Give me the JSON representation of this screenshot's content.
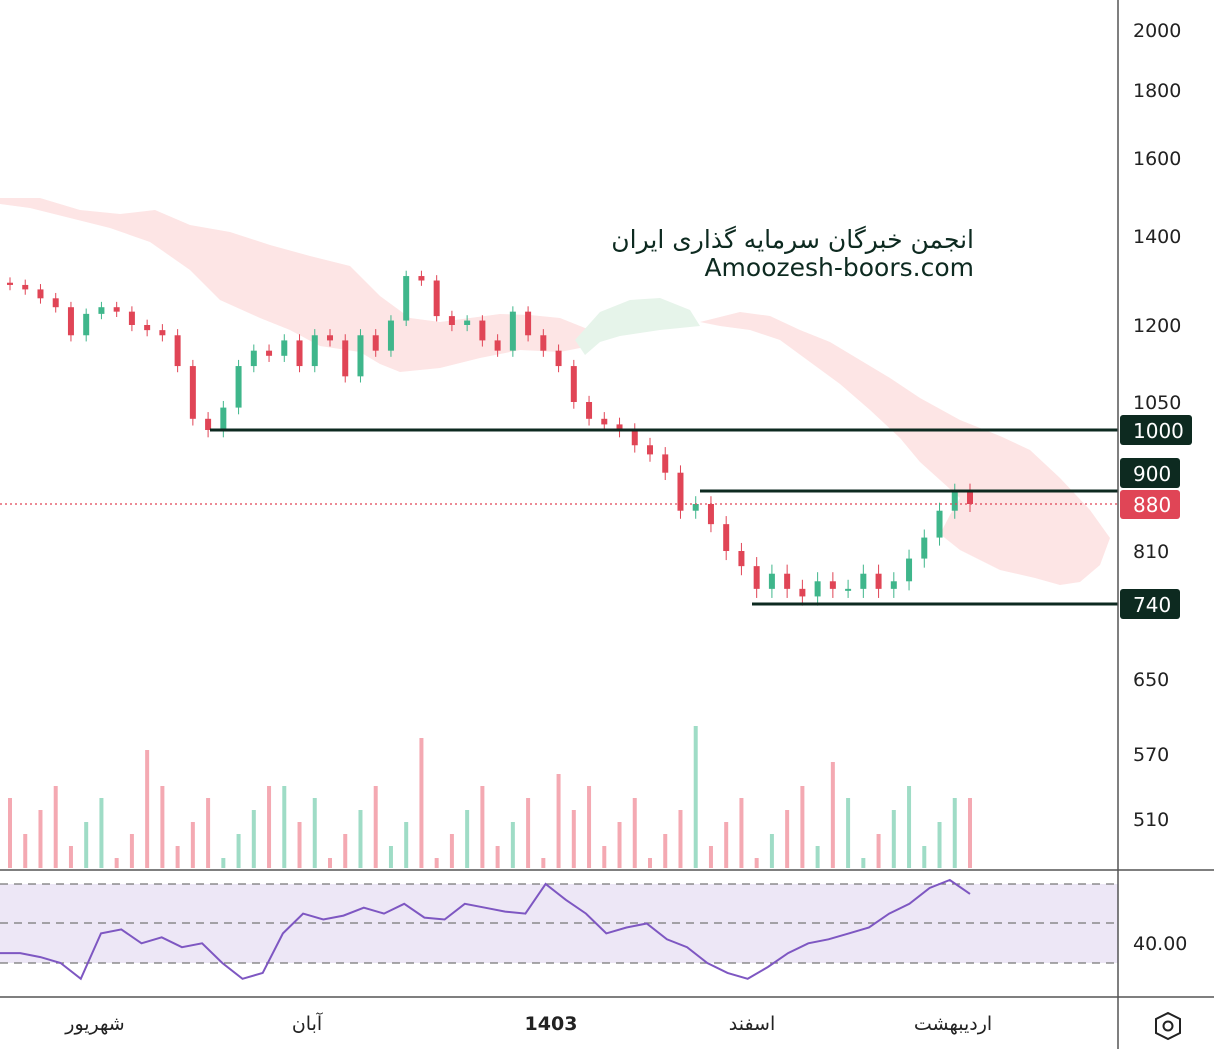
{
  "watermark": {
    "line1": "انجمن خبرگان سرمایه گذاری ایران",
    "line2": "Amoozesh-boors.com"
  },
  "colors": {
    "up": "#3fb68b",
    "down": "#e04556",
    "level_line": "#0d2a20",
    "rsi_line": "#7e57c2",
    "rsi_band": "#ede7f6",
    "cloud_red": "#fde5e5",
    "cloud_green": "#e6f4ea",
    "price_tag": "#e04556"
  },
  "settings_icon": "settings-hexagon-icon",
  "chart_data": [
    {
      "type": "candlestick",
      "title": "",
      "price_axis_ticks": [
        "2000",
        "1800",
        "1600",
        "1400",
        "1200",
        "1050",
        "810",
        "650",
        "570",
        "510"
      ],
      "horizontal_levels": [
        {
          "value": 1000,
          "label": "1000"
        },
        {
          "value": 900,
          "label": "900"
        },
        {
          "value": 740,
          "label": "740"
        }
      ],
      "last_price": {
        "value": 880,
        "label": "880"
      },
      "x_axis_labels": [
        "شهریور",
        "آبان",
        "1403",
        "اسفند",
        "اردیبهشت"
      ],
      "candles_approx_close": [
        1290,
        1280,
        1260,
        1240,
        1180,
        1225,
        1240,
        1230,
        1200,
        1190,
        1180,
        1120,
        1020,
        1000,
        1040,
        1120,
        1150,
        1140,
        1170,
        1120,
        1180,
        1170,
        1100,
        1180,
        1150,
        1210,
        1310,
        1300,
        1220,
        1200,
        1210,
        1170,
        1150,
        1230,
        1180,
        1150,
        1120,
        1050,
        1020,
        1010,
        1000,
        975,
        960,
        930,
        870,
        880,
        850,
        810,
        790,
        760,
        780,
        760,
        750,
        770,
        760,
        760,
        780,
        760,
        770,
        800,
        830,
        870,
        900,
        880
      ],
      "volume_visible": true,
      "ichimoku_cloud_visible": true
    },
    {
      "type": "line",
      "name": "",
      "y_ticks": [
        "40.00"
      ],
      "levels": [
        70,
        50,
        30
      ],
      "values_approx": [
        35,
        35,
        33,
        30,
        22,
        45,
        47,
        40,
        43,
        38,
        40,
        30,
        22,
        25,
        45,
        55,
        52,
        54,
        58,
        55,
        60,
        53,
        52,
        60,
        58,
        56,
        55,
        70,
        62,
        55,
        45,
        48,
        50,
        42,
        38,
        30,
        25,
        22,
        28,
        35,
        40,
        42,
        45,
        48,
        55,
        60,
        68,
        72,
        65
      ]
    }
  ]
}
